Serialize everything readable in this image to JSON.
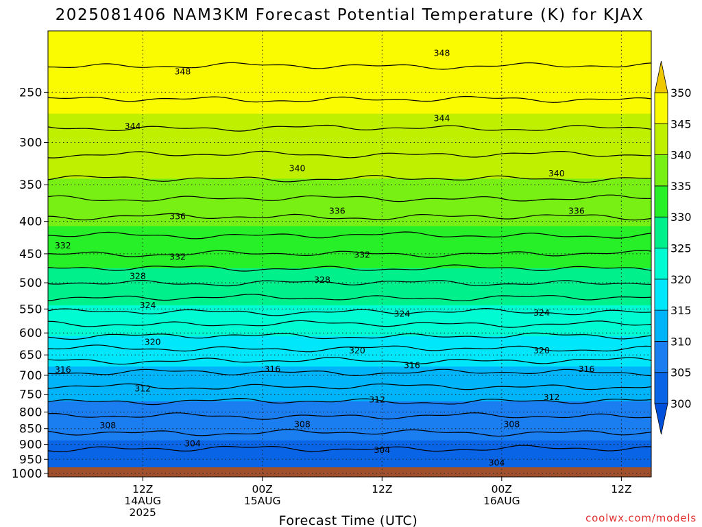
{
  "chart_data": {
    "type": "heatmap",
    "title": "2025081406 NAM3KM Forecast Potential Temperature (K) for KJAX",
    "xlabel": "Forecast Time (UTC)",
    "credit": "coolwx.com/models",
    "y_axis": {
      "pressure_levels": [
        250,
        300,
        350,
        400,
        450,
        500,
        550,
        600,
        650,
        700,
        750,
        800,
        850,
        900,
        950,
        1000
      ],
      "tick_labels": [
        "250",
        "300",
        "350",
        "400",
        "450",
        "500",
        "550",
        "600",
        "650",
        "700",
        "750",
        "800",
        "850",
        "900",
        "950",
        "1000"
      ],
      "range": [
        200,
        1013
      ],
      "scale": "log-pressure, inverted"
    },
    "x_axis": {
      "range_hours": [
        -9.5,
        51
      ],
      "ticks": [
        {
          "hour": 0,
          "line1": "12Z",
          "line2": "14AUG",
          "line3": "2025"
        },
        {
          "hour": 12,
          "line1": "00Z",
          "line2": "15AUG",
          "line3": ""
        },
        {
          "hour": 24,
          "line1": "12Z",
          "line2": "",
          "line3": ""
        },
        {
          "hour": 36,
          "line1": "00Z",
          "line2": "16AUG",
          "line3": ""
        },
        {
          "hour": 48,
          "line1": "12Z",
          "line2": "",
          "line3": ""
        }
      ]
    },
    "grid": true,
    "colorbar": {
      "placement": "right",
      "bounds": [
        300,
        305,
        310,
        315,
        320,
        325,
        330,
        335,
        340,
        345,
        350
      ],
      "tick_labels": [
        "300",
        "305",
        "310",
        "315",
        "320",
        "325",
        "330",
        "335",
        "340",
        "345",
        "350"
      ],
      "colors": [
        "#0050dc",
        "#0a64e6",
        "#1a7df0",
        "#00b4fa",
        "#00e6fa",
        "#00fad2",
        "#00f08c",
        "#28f028",
        "#78f014",
        "#bef000",
        "#fafa00",
        "#f0c800"
      ],
      "extend": "both"
    },
    "potential_temperature_profile": {
      "pressure_hPa": [
        200,
        250,
        300,
        350,
        400,
        450,
        500,
        550,
        600,
        650,
        700,
        750,
        800,
        850,
        900,
        950,
        1000
      ],
      "theta_K": [
        350,
        346.5,
        343,
        339.5,
        335.5,
        332,
        328,
        324.5,
        320.5,
        317,
        313.5,
        311,
        308.5,
        306.5,
        304.5,
        302.8,
        301.5
      ]
    },
    "contours": {
      "levels_K": [
        348,
        346,
        344,
        342,
        340,
        338,
        336,
        334,
        332,
        330,
        328,
        326,
        324,
        322,
        320,
        318,
        316,
        314,
        312,
        310,
        308,
        306,
        304
      ],
      "interval_K": 2,
      "labels": [
        {
          "value": "348",
          "hour": 4,
          "level": 232
        },
        {
          "value": "348",
          "hour": 30,
          "level": 217
        },
        {
          "value": "344",
          "hour": -1,
          "level": 283
        },
        {
          "value": "344",
          "hour": 30,
          "level": 275
        },
        {
          "value": "340",
          "hour": 15.5,
          "level": 330
        },
        {
          "value": "340",
          "hour": 41.5,
          "level": 336
        },
        {
          "value": "336",
          "hour": 3.5,
          "level": 393
        },
        {
          "value": "336",
          "hour": 19.5,
          "level": 385
        },
        {
          "value": "336",
          "hour": 43.5,
          "level": 385
        },
        {
          "value": "332",
          "hour": -8,
          "level": 437
        },
        {
          "value": "332",
          "hour": 3.5,
          "level": 455
        },
        {
          "value": "332",
          "hour": 22,
          "level": 452
        },
        {
          "value": "328",
          "hour": -0.5,
          "level": 488
        },
        {
          "value": "328",
          "hour": 18,
          "level": 495
        },
        {
          "value": "324",
          "hour": 0.5,
          "level": 543
        },
        {
          "value": "324",
          "hour": 26,
          "level": 560
        },
        {
          "value": "324",
          "hour": 40,
          "level": 558
        },
        {
          "value": "320",
          "hour": 1,
          "level": 620
        },
        {
          "value": "320",
          "hour": 21.5,
          "level": 640
        },
        {
          "value": "320",
          "hour": 40,
          "level": 640
        },
        {
          "value": "316",
          "hour": -8,
          "level": 686
        },
        {
          "value": "316",
          "hour": 13,
          "level": 685
        },
        {
          "value": "316",
          "hour": 27,
          "level": 675
        },
        {
          "value": "316",
          "hour": 44.5,
          "level": 685
        },
        {
          "value": "312",
          "hour": 0,
          "level": 735
        },
        {
          "value": "312",
          "hour": 23.5,
          "level": 765
        },
        {
          "value": "312",
          "hour": 41,
          "level": 758
        },
        {
          "value": "308",
          "hour": -3.5,
          "level": 840
        },
        {
          "value": "308",
          "hour": 16,
          "level": 837
        },
        {
          "value": "308",
          "hour": 37,
          "level": 837
        },
        {
          "value": "304",
          "hour": 5,
          "level": 897
        },
        {
          "value": "304",
          "hour": 24,
          "level": 919
        },
        {
          "value": "304",
          "hour": 35.5,
          "level": 962
        }
      ]
    },
    "surface_color": "#a0502d",
    "contour_color": "#000000"
  }
}
